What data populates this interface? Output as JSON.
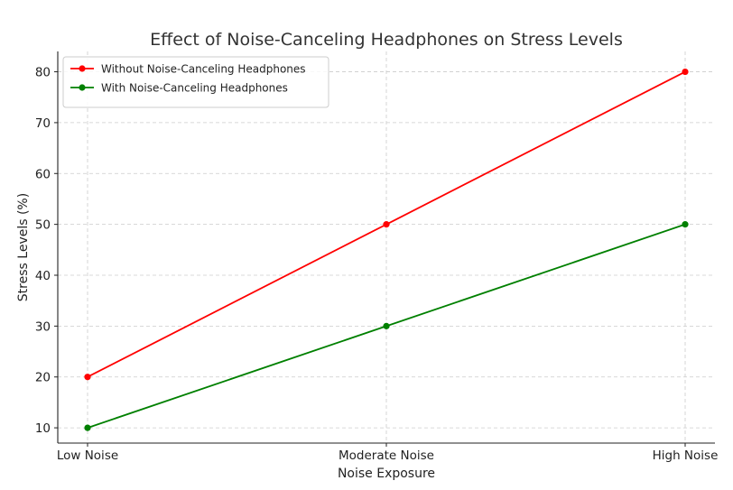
{
  "chart_data": {
    "type": "line",
    "title": "Effect of Noise-Canceling Headphones on Stress Levels",
    "xlabel": "Noise Exposure",
    "ylabel": "Stress Levels (%)",
    "categories": [
      "Low Noise",
      "Moderate Noise",
      "High Noise"
    ],
    "ylim": [
      7,
      84
    ],
    "yticks": [
      10,
      20,
      30,
      40,
      50,
      60,
      70,
      80
    ],
    "grid": true,
    "legend_position": "top-left",
    "series": [
      {
        "name": "Without Noise-Canceling Headphones",
        "values": [
          20,
          50,
          80
        ],
        "color": "#ff0000",
        "marker": "circle"
      },
      {
        "name": "With Noise-Canceling Headphones",
        "values": [
          10,
          30,
          50
        ],
        "color": "#008000",
        "marker": "circle"
      }
    ]
  }
}
